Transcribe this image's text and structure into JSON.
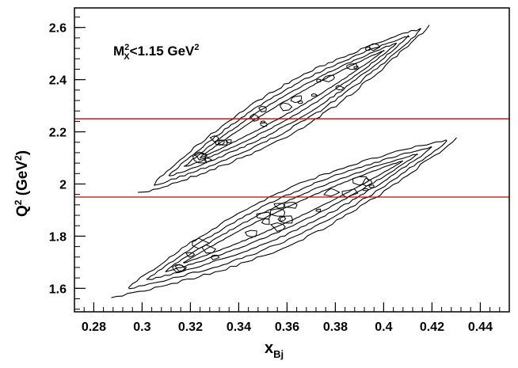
{
  "chart_data": {
    "type": "contour",
    "annotation": {
      "main": "M",
      "sup": "2",
      "sub": "X",
      "rest": "<1.15 GeV",
      "rest_sup": "2"
    },
    "xlabel": {
      "main": "x",
      "sub": "Bj"
    },
    "ylabel": {
      "pre": "Q",
      "sup": "2",
      "mid": " (GeV",
      "sup2": "2",
      "post": ")"
    },
    "xlim": [
      0.272,
      0.452
    ],
    "ylim": [
      1.51,
      2.675
    ],
    "xticks": [
      0.28,
      0.3,
      0.32,
      0.34,
      0.36,
      0.38,
      0.4,
      0.42,
      0.44
    ],
    "xtick_labels": [
      "0.28",
      "0.3",
      "0.32",
      "0.34",
      "0.36",
      "0.38",
      "0.4",
      "0.42",
      "0.44"
    ],
    "yticks": [
      1.6,
      1.8,
      2.0,
      2.2,
      2.4,
      2.6
    ],
    "ytick_labels": [
      "1.6",
      "1.8",
      "2",
      "2.2",
      "2.4",
      "2.6"
    ],
    "hlines": [
      {
        "y": 2.25,
        "color": "#cc0000"
      },
      {
        "y": 1.95,
        "color": "#cc0000"
      }
    ],
    "bands": [
      {
        "x_start": 0.296,
        "y_start": 1.95,
        "x_end": 0.423,
        "y_end": 2.635,
        "contour_levels": 5
      },
      {
        "x_start": 0.284,
        "y_start": 1.555,
        "x_end": 0.435,
        "y_end": 2.205,
        "contour_levels": 5
      }
    ],
    "colors": {
      "contour": "#000000",
      "axis": "#000000",
      "reference_line": "#cc0000"
    }
  }
}
